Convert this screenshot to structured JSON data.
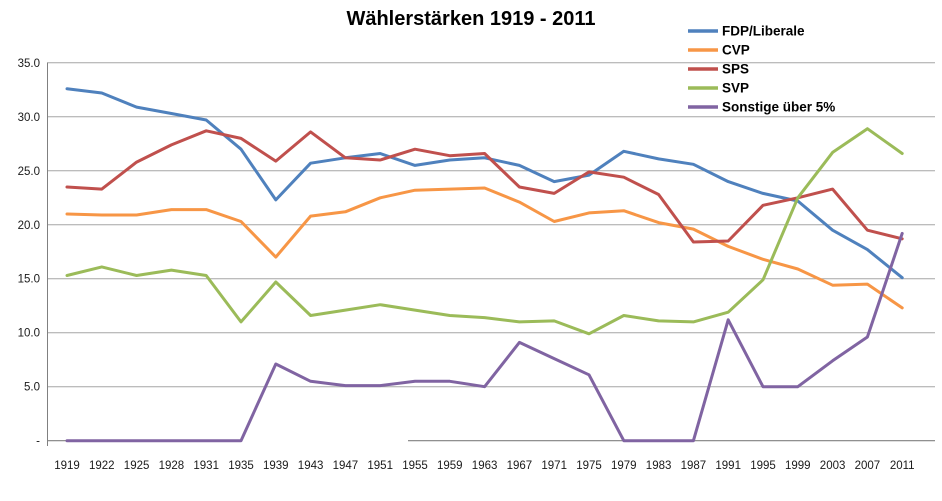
{
  "chart_data": {
    "type": "line",
    "title": "Wählerstärken 1919 - 2011",
    "xlabel": "",
    "ylabel": "",
    "ylim": [
      0,
      35
    ],
    "grid": true,
    "legend_position": "top-right",
    "categories": [
      "1919",
      "1922",
      "1925",
      "1928",
      "1931",
      "1935",
      "1939",
      "1943",
      "1947",
      "1951",
      "1955",
      "1959",
      "1963",
      "1967",
      "1971",
      "1975",
      "1979",
      "1983",
      "1987",
      "1991",
      "1995",
      "1999",
      "2003",
      "2007",
      "2011"
    ],
    "y_ticks": [
      {
        "value": 35,
        "label": "35.0"
      },
      {
        "value": 30,
        "label": "30.0"
      },
      {
        "value": 25,
        "label": "25.0"
      },
      {
        "value": 20,
        "label": "20.0"
      },
      {
        "value": 15,
        "label": "15.0"
      },
      {
        "value": 10,
        "label": "10.0"
      },
      {
        "value": 5,
        "label": "5.0"
      },
      {
        "value": 0,
        "label": "-"
      }
    ],
    "series": [
      {
        "id": "fdp-liberale",
        "name": "FDP/Liberale",
        "color": "#4F81BD",
        "values": [
          32.6,
          32.2,
          30.9,
          30.3,
          29.7,
          27.0,
          22.3,
          25.7,
          26.2,
          26.6,
          25.5,
          26.0,
          26.2,
          25.5,
          24.0,
          24.6,
          26.8,
          26.1,
          25.6,
          24.0,
          22.9,
          22.2,
          19.5,
          17.7,
          15.1
        ]
      },
      {
        "id": "cvp",
        "name": "CVP",
        "color": "#F79646",
        "values": [
          21.0,
          20.9,
          20.9,
          21.4,
          21.4,
          20.3,
          17.0,
          20.8,
          21.2,
          22.5,
          23.2,
          23.3,
          23.4,
          22.1,
          20.3,
          21.1,
          21.3,
          20.2,
          19.6,
          18.0,
          16.8,
          15.9,
          14.4,
          14.5,
          12.3
        ]
      },
      {
        "id": "sps",
        "name": "SPS",
        "color": "#C0504D",
        "values": [
          23.5,
          23.3,
          25.8,
          27.4,
          28.7,
          28.0,
          25.9,
          28.6,
          26.2,
          26.0,
          27.0,
          26.4,
          26.6,
          23.5,
          22.9,
          24.9,
          24.4,
          22.8,
          18.4,
          18.5,
          21.8,
          22.5,
          23.3,
          19.5,
          18.7
        ]
      },
      {
        "id": "svp",
        "name": "SVP",
        "color": "#9BBB59",
        "values": [
          15.3,
          16.1,
          15.3,
          15.8,
          15.3,
          11.0,
          14.7,
          11.6,
          12.1,
          12.6,
          12.1,
          11.6,
          11.4,
          11.0,
          11.1,
          9.9,
          11.6,
          11.1,
          11.0,
          11.9,
          14.9,
          22.5,
          26.7,
          28.9,
          26.6
        ]
      },
      {
        "id": "sonstige-ueber-5",
        "name": "Sonstige über 5%",
        "color": "#8064A2",
        "values": [
          0,
          0,
          0,
          0,
          0,
          0,
          7.1,
          5.5,
          5.1,
          5.1,
          5.5,
          5.5,
          5.0,
          9.1,
          7.6,
          6.1,
          0,
          0,
          0,
          11.2,
          5.0,
          5.0,
          7.4,
          9.6,
          19.2
        ]
      }
    ],
    "style": {
      "gridline_color": "#A6A6A6",
      "axis_color": "#808080",
      "tick_label_color": "#1a1a1a",
      "line_width": 3
    }
  }
}
